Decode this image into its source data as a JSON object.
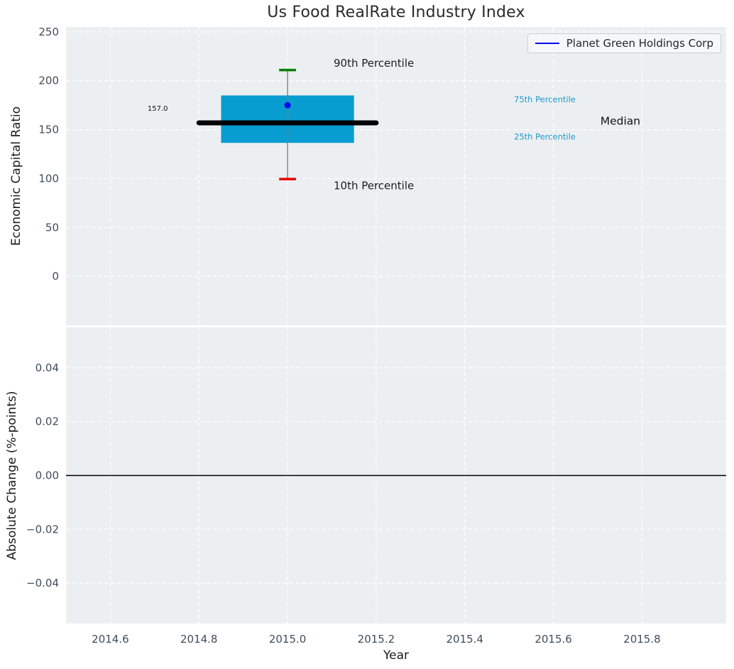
{
  "page": {
    "background": "#ffffff",
    "plot_background": "#eceff1"
  },
  "chart_data": [
    {
      "type": "boxplot",
      "title": "Us Food RealRate Industry Index",
      "ylabel": "Economic Capital Ratio",
      "xlabel": "",
      "xlim": [
        2014.5,
        2015.99
      ],
      "ylim": [
        -50,
        255
      ],
      "grid": true,
      "background": "#eceff1",
      "legend": {
        "label": "Planet Green Holdings Corp",
        "color": "#0808ee",
        "position": "upper right"
      },
      "yticks": [
        {
          "value": 250,
          "label": "250"
        },
        {
          "value": 200,
          "label": "200"
        },
        {
          "value": 150,
          "label": "150"
        },
        {
          "value": 100,
          "label": "100"
        },
        {
          "value": 50,
          "label": "50"
        },
        {
          "value": 0,
          "label": "0"
        }
      ],
      "xticks": [
        {
          "value": 2014.6,
          "label": ""
        },
        {
          "value": 2014.8,
          "label": ""
        },
        {
          "value": 2015.0,
          "label": ""
        },
        {
          "value": 2015.2,
          "label": ""
        },
        {
          "value": 2015.4,
          "label": ""
        },
        {
          "value": 2015.6,
          "label": ""
        },
        {
          "value": 2015.8,
          "label": ""
        }
      ],
      "box": {
        "x": 2015.0,
        "p10": 99.5,
        "p25": 136.5,
        "median": 157.0,
        "p75": 185,
        "p90": 211,
        "box_half_width": 0.15,
        "median_half_width": 0.2,
        "cap_half_width": 0.019,
        "colors": {
          "box": "#089dd1",
          "median": "#000000",
          "p90_cap": "#008000",
          "p10_cap": "#ee0000",
          "whisker": "#7a7a7a"
        }
      },
      "series": [
        {
          "name": "Planet Green Holdings Corp",
          "color": "#0808ee",
          "points": [
            {
              "x": 2015.0,
              "y": 175
            }
          ]
        }
      ],
      "annotations": [
        {
          "name": "annotation-90th-percentile",
          "text": "90th Percentile",
          "x": 2015.104,
          "y": 218,
          "size": 15,
          "color": "#1c1c1c"
        },
        {
          "name": "annotation-10th-percentile",
          "text": "10th Percentile",
          "x": 2015.104,
          "y": 93,
          "size": 15,
          "color": "#1c1c1c"
        },
        {
          "name": "annotation-median-value",
          "text": "157.0",
          "x": 2014.684,
          "y": 172,
          "size": 10,
          "color": "#111111"
        },
        {
          "name": "annotation-75th-percentile",
          "text": "75th Percentile",
          "x": 2015.511,
          "y": 181,
          "size": 11.5,
          "color": "#1f9ac9"
        },
        {
          "name": "annotation-median",
          "text": "Median",
          "x": 2015.706,
          "y": 159,
          "size": 15.5,
          "color": "#111111"
        },
        {
          "name": "annotation-25th-percentile",
          "text": "25th Percentile",
          "x": 2015.511,
          "y": 143,
          "size": 11.5,
          "color": "#1f9ac9"
        }
      ]
    },
    {
      "type": "line",
      "title": "",
      "ylabel": "Absolute Change (%-points)",
      "xlabel": "Year",
      "xlim": [
        2014.5,
        2015.99
      ],
      "ylim": [
        -0.055,
        0.055
      ],
      "grid": true,
      "background": "#eceff1",
      "zero_line": {
        "y": 0,
        "color": "#000000"
      },
      "yticks": [
        {
          "value": 0.04,
          "label": "0.04"
        },
        {
          "value": 0.02,
          "label": "0.02"
        },
        {
          "value": 0.0,
          "label": "0.00"
        },
        {
          "value": -0.02,
          "label": "−0.02"
        },
        {
          "value": -0.04,
          "label": "−0.04"
        }
      ],
      "xticks": [
        {
          "value": 2014.6,
          "label": "2014.6"
        },
        {
          "value": 2014.8,
          "label": "2014.8"
        },
        {
          "value": 2015.0,
          "label": "2015.0"
        },
        {
          "value": 2015.2,
          "label": "2015.2"
        },
        {
          "value": 2015.4,
          "label": "2015.4"
        },
        {
          "value": 2015.6,
          "label": "2015.6"
        },
        {
          "value": 2015.8,
          "label": "2015.8"
        }
      ],
      "series": []
    }
  ]
}
